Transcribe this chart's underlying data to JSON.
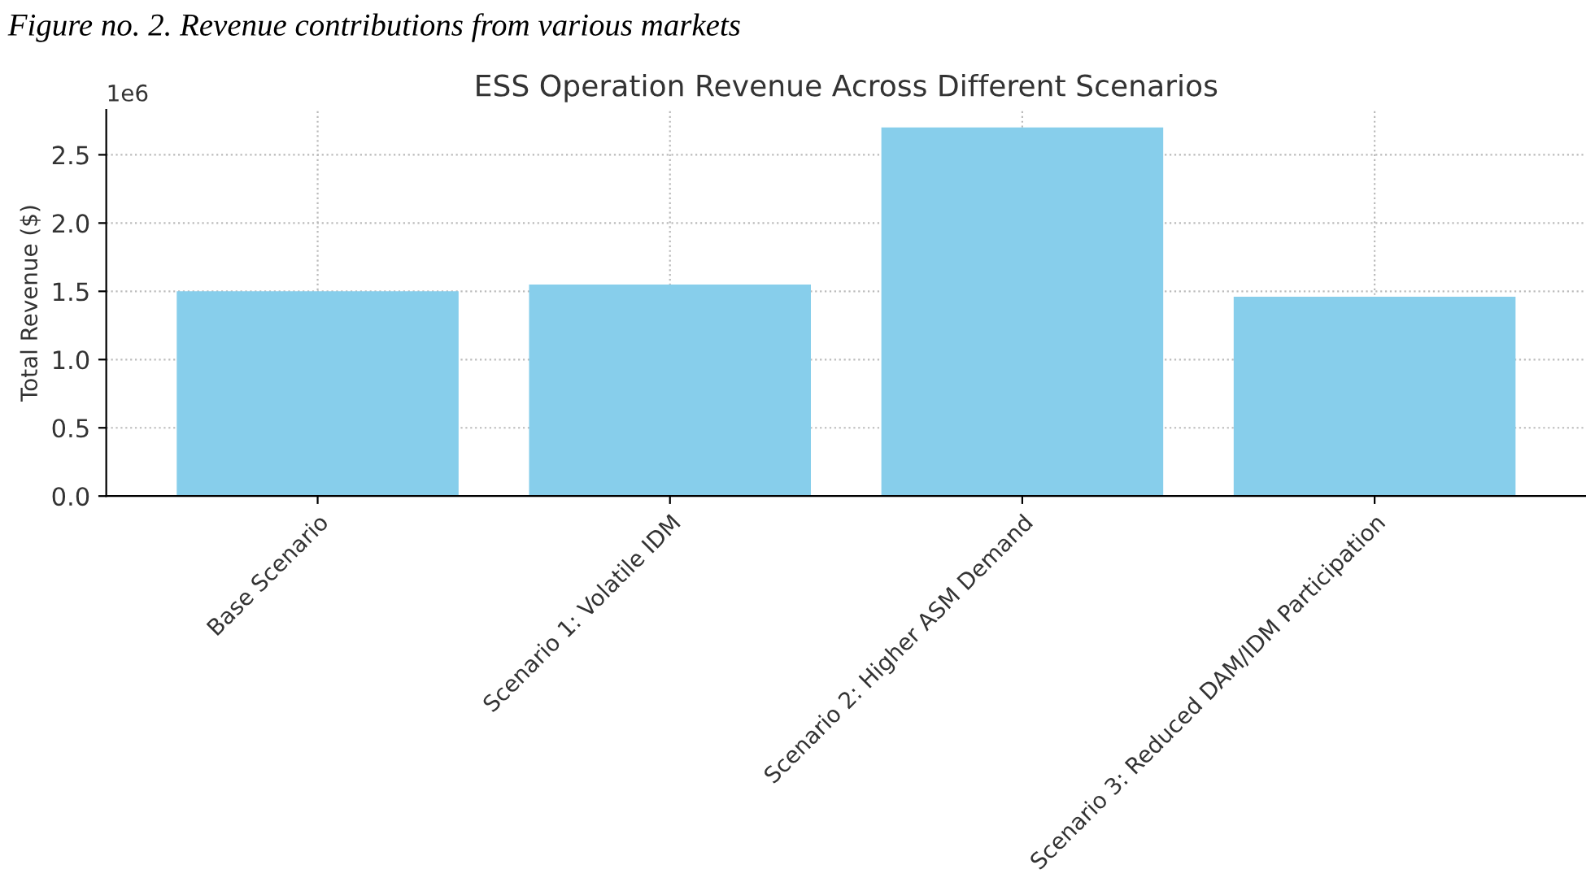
{
  "chart_data": {
    "type": "bar",
    "title": "ESS Operation Revenue Across Different Scenarios",
    "ylabel": "Total Revenue ($)",
    "categories": [
      "Base Scenario",
      "Scenario 1: Volatile IDM",
      "Scenario 2: Higher ASM Demand",
      "Scenario 3: Reduced DAM/IDM Participation"
    ],
    "values": [
      1.5,
      1.55,
      2.7,
      1.46
    ],
    "color": "#87ceeb",
    "ylim": [
      0,
      2.83
    ],
    "yticks": [
      {
        "value": 0,
        "label": "0.0"
      },
      0.5,
      {
        "value": 1,
        "label": "1.0"
      },
      1.5,
      {
        "value": 2,
        "label": "2.0"
      },
      2.5
    ],
    "grid": true,
    "annotations": [
      "Figure no. 2. Revenue contributions from various markets",
      "1e6"
    ]
  }
}
